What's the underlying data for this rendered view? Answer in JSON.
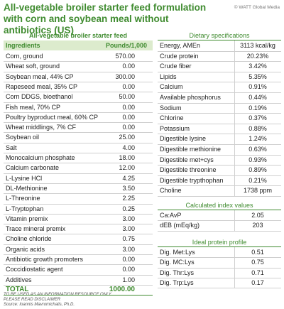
{
  "header": {
    "title": "All-vegetable broiler starter feed formulation with corn and soybean meal without antibiotics (US)",
    "credit": "© WATT Global Media"
  },
  "feed": {
    "title": "All-vegetable broiler starter feed",
    "columns": [
      "Ingredients",
      "Pounds/1,000"
    ],
    "rows": [
      [
        "Corn, ground",
        "570.00"
      ],
      [
        "Wheat soft, ground",
        "0.00"
      ],
      [
        "Soybean meal, 44% CP",
        "300.00"
      ],
      [
        "Rapeseed meal, 35% CP",
        "0.00"
      ],
      [
        "Corn DDGS, bioethanol",
        "50.00"
      ],
      [
        "Fish meal, 70% CP",
        "0.00"
      ],
      [
        "Poultry byproduct meal, 60% CP",
        "0.00"
      ],
      [
        "Wheat middlings, 7% CF",
        "0.00"
      ],
      [
        "Soybean oil",
        "25.00"
      ],
      [
        "Salt",
        "4.00"
      ],
      [
        "Monocalcium phosphate",
        "18.00"
      ],
      [
        "Calcium carbonate",
        "12.00"
      ],
      [
        "L-Lysine HCl",
        "4.25"
      ],
      [
        "DL-Methionine",
        "3.50"
      ],
      [
        "L-Threonine",
        "2.25"
      ],
      [
        "L-Tryptophan",
        "0.25"
      ],
      [
        "Vitamin premix",
        "3.00"
      ],
      [
        "Trace mineral premix",
        "3.00"
      ],
      [
        "Choline chloride",
        "0.75"
      ],
      [
        "Organic acids",
        "3.00"
      ],
      [
        "Antibiotic growth promoters",
        "0.00"
      ],
      [
        "Coccidiostatic agent",
        "0.00"
      ],
      [
        "Additives",
        "1.00"
      ]
    ],
    "total": [
      "TOTAL",
      "1000.00"
    ]
  },
  "specs": {
    "title": "Dietary specifications",
    "rows": [
      [
        "Energy, AMEn",
        "3113 kcal/kg"
      ],
      [
        "Crude protein",
        "20.23%"
      ],
      [
        "Crude fiber",
        "3.42%"
      ],
      [
        "Lipids",
        "5.35%"
      ],
      [
        "Calcium",
        "0.91%"
      ],
      [
        "Available phosphorus",
        "0.44%"
      ],
      [
        "Sodium",
        "0.19%"
      ],
      [
        "Chlorine",
        "0.37%"
      ],
      [
        "Potassium",
        "0.88%"
      ],
      [
        "Digestible lysine",
        "1.24%"
      ],
      [
        "Digestible methionine",
        "0.63%"
      ],
      [
        "Digestible met+cys",
        "0.93%"
      ],
      [
        "Digestible threonine",
        "0.89%"
      ],
      [
        "Digestible trypthophan",
        "0.21%"
      ],
      [
        "Choline",
        "1738 ppm"
      ]
    ]
  },
  "index": {
    "title": "Calculated index values",
    "rows": [
      [
        "Ca:AvP",
        "2.05"
      ],
      [
        "dEB (mEq/kg)",
        "203"
      ]
    ]
  },
  "protein": {
    "title": "Ideal protein profile",
    "rows": [
      [
        "Dig. Met:Lys",
        "0.51"
      ],
      [
        "Dig. MC:Lys",
        "0.75"
      ],
      [
        "Dig. Thr:Lys",
        "0.71"
      ],
      [
        "Dig. Trp:Lys",
        "0.17"
      ]
    ]
  },
  "footer": {
    "lines": [
      "TO BE USED AS AN INFORMATION RESOURCE ONLY",
      "PLEASE READ DISCLAIMER",
      "Source: Ioannis Mavromichalis, Ph.D."
    ]
  }
}
